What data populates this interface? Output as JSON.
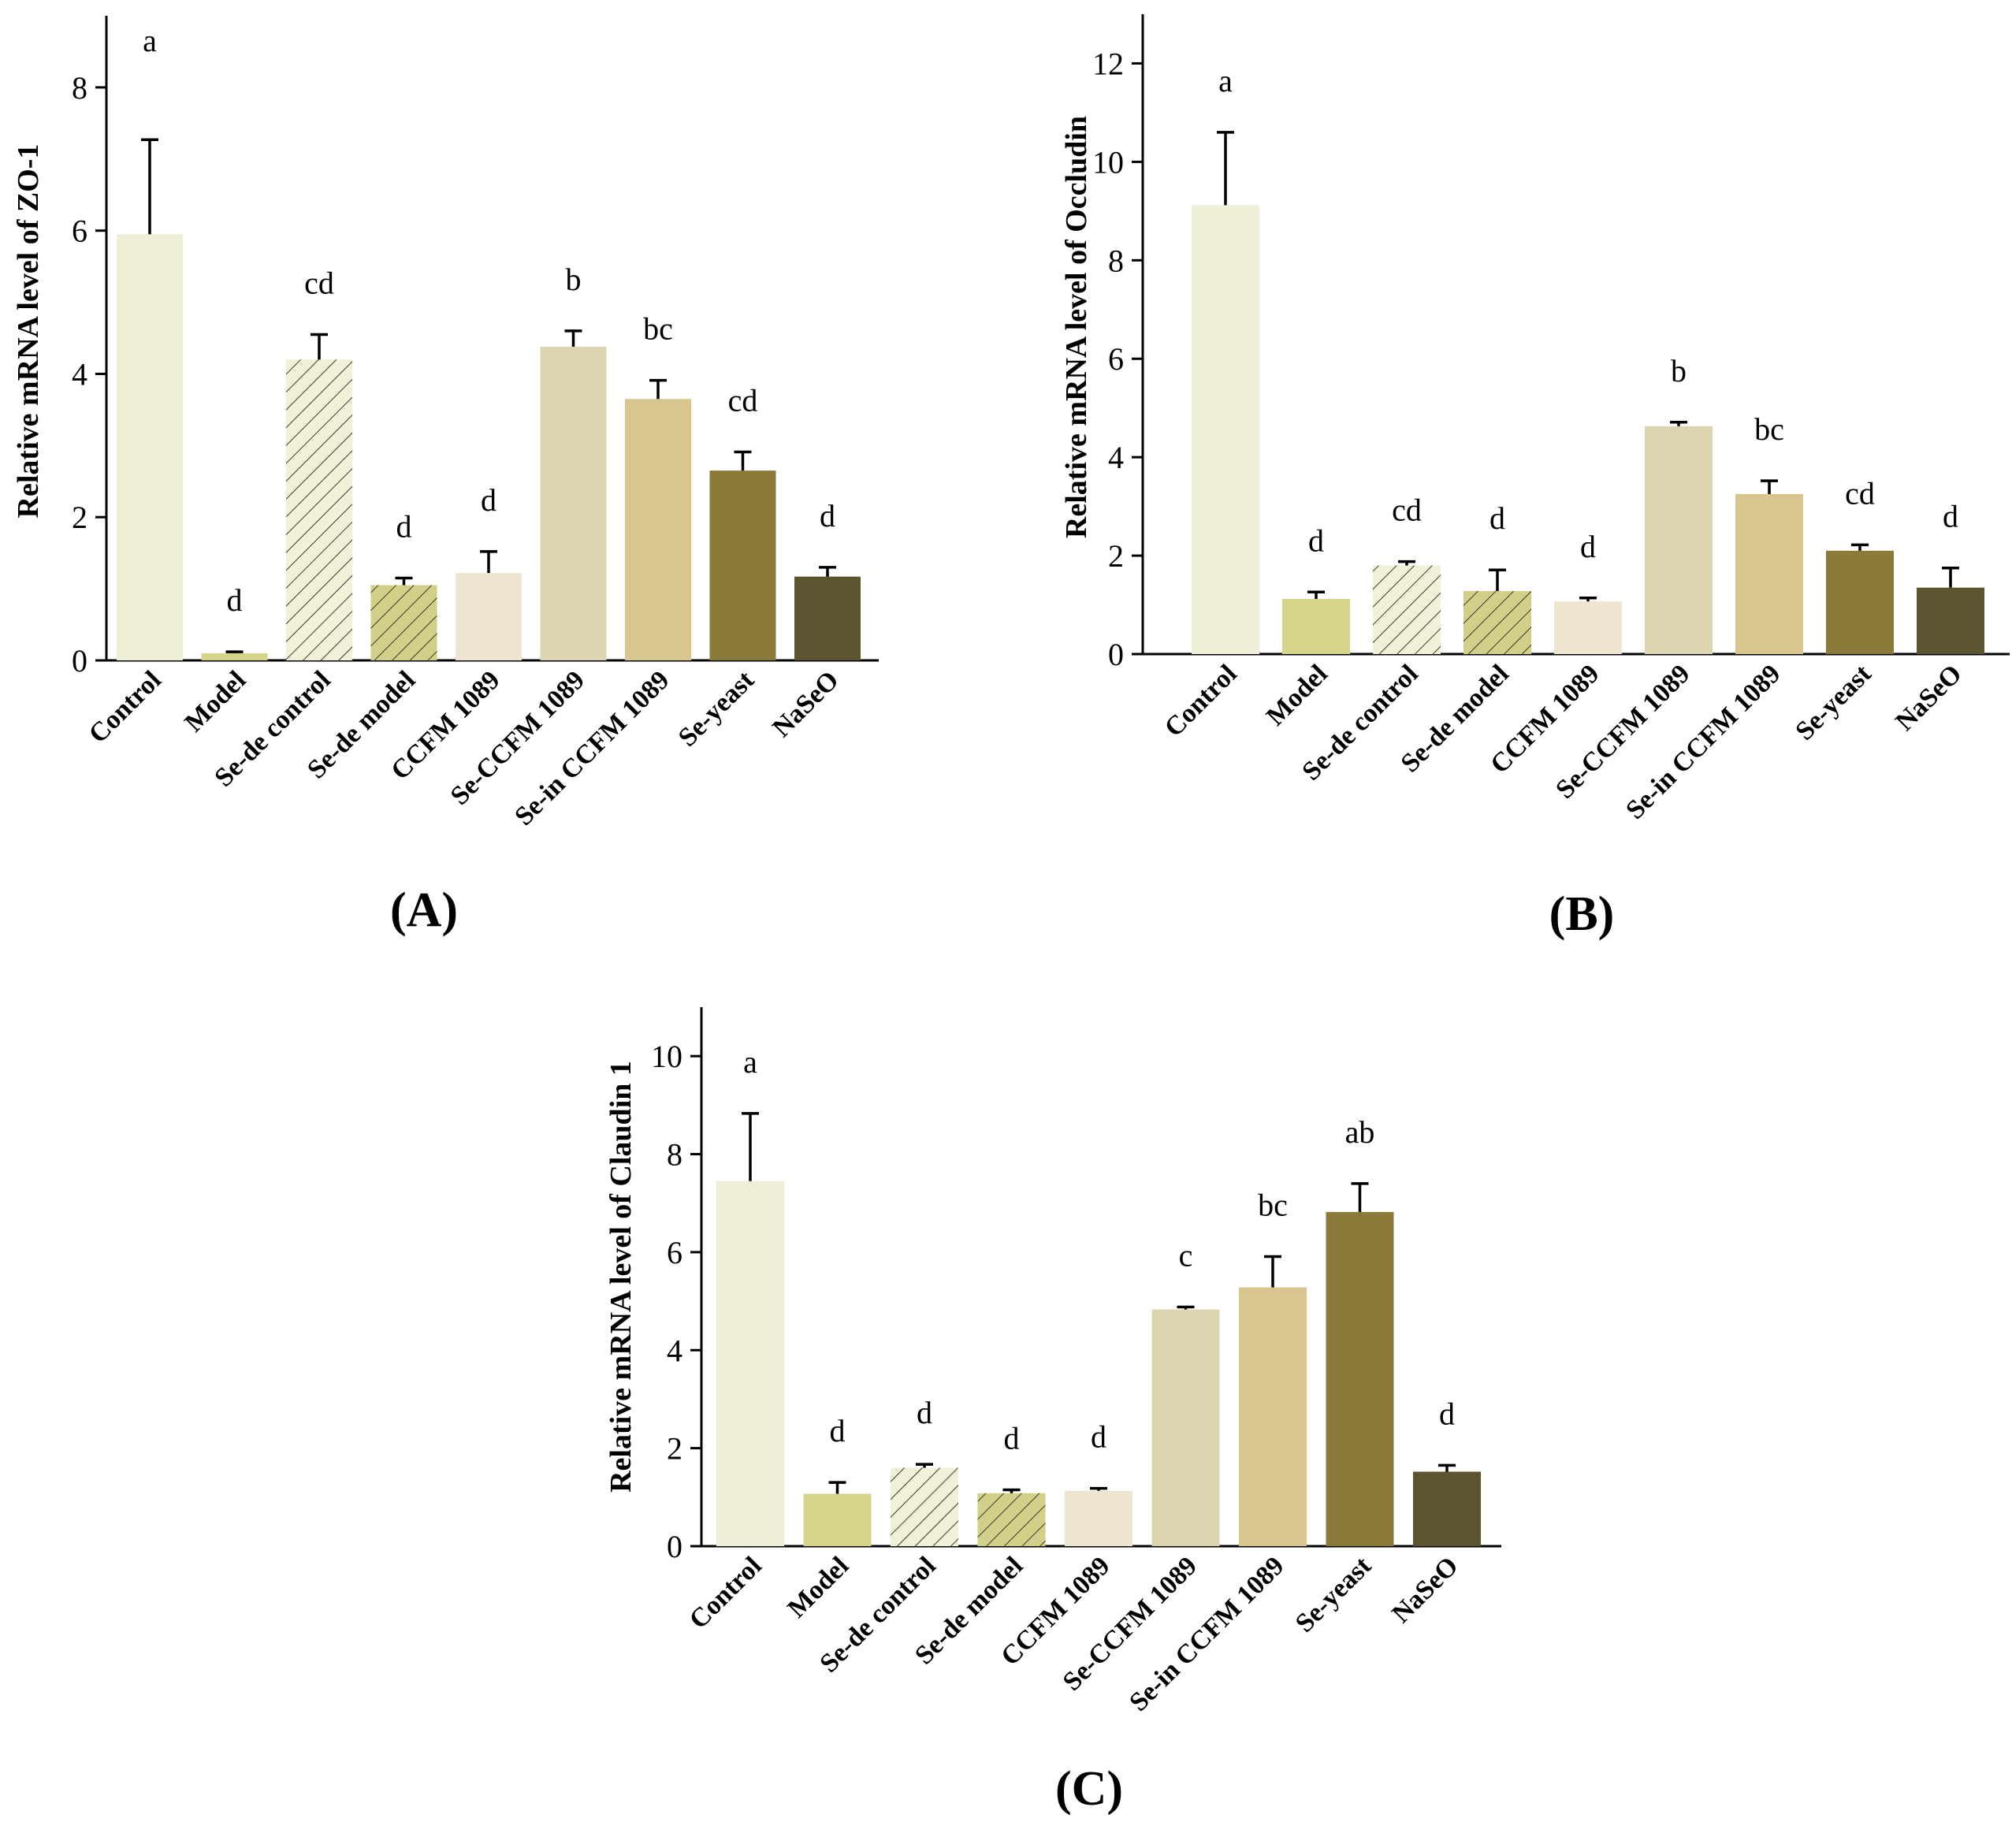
{
  "chart_data": [
    {
      "type": "bar",
      "panel_label": "(A)",
      "ylabel": "Relative mRNA level of ZO-1",
      "ylim": [
        0,
        9
      ],
      "yticks": [
        0,
        2,
        4,
        6,
        8
      ],
      "categories": [
        "Control",
        "Model",
        "Se-de control",
        "Se-de model",
        "CCFM 1089",
        "Se-CCFM 1089",
        "Se-in CCFM 1089",
        "Se-yeast",
        "NaSeO"
      ],
      "values": [
        5.95,
        0.1,
        4.2,
        1.05,
        1.22,
        4.38,
        3.65,
        2.65,
        1.17
      ],
      "errors": [
        1.32,
        0.02,
        0.35,
        0.1,
        0.3,
        0.22,
        0.26,
        0.26,
        0.13
      ],
      "significance": [
        "a",
        "d",
        "cd",
        "d",
        "d",
        "b",
        "bc",
        "cd",
        "d"
      ]
    },
    {
      "type": "bar",
      "panel_label": "(B)",
      "ylabel": "Relative mRNA level of Occludin",
      "ylim": [
        0,
        13
      ],
      "yticks": [
        0,
        2,
        4,
        6,
        8,
        10,
        12
      ],
      "categories": [
        "Control",
        "Model",
        "Se-de control",
        "Se-de model",
        "CCFM 1089",
        "Se-CCFM 1089",
        "Se-in CCFM 1089",
        "Se-yeast",
        "NaSeO"
      ],
      "values": [
        9.12,
        1.12,
        1.8,
        1.28,
        1.07,
        4.63,
        3.25,
        2.1,
        1.35
      ],
      "errors": [
        1.48,
        0.14,
        0.08,
        0.43,
        0.07,
        0.08,
        0.27,
        0.12,
        0.4
      ],
      "significance": [
        "a",
        "d",
        "cd",
        "d",
        "d",
        "b",
        "bc",
        "cd",
        "d"
      ]
    },
    {
      "type": "bar",
      "panel_label": "(C)",
      "ylabel": "Relative mRNA level of Claudin 1",
      "ylim": [
        0,
        11
      ],
      "yticks": [
        0,
        2,
        4,
        6,
        8,
        10
      ],
      "categories": [
        "Control",
        "Model",
        "Se-de control",
        "Se-de model",
        "CCFM 1089",
        "Se-CCFM 1089",
        "Se-in CCFM 1089",
        "Se-yeast",
        "NaSeO"
      ],
      "values": [
        7.45,
        1.07,
        1.6,
        1.08,
        1.13,
        4.83,
        5.28,
        6.82,
        1.52
      ],
      "errors": [
        1.38,
        0.23,
        0.07,
        0.07,
        0.05,
        0.05,
        0.63,
        0.58,
        0.13
      ],
      "significance": [
        "a",
        "d",
        "d",
        "d",
        "d",
        "c",
        "bc",
        "ab",
        "d"
      ]
    }
  ],
  "colors": {
    "bars": [
      "#efeed6",
      "#d6d38a",
      "#f1f0d8",
      "#d2cf88",
      "#ede5d0",
      "#ddd4b0",
      "#d8c68e",
      "#8b7a3a",
      "#5c542f"
    ],
    "hatched_bars": [
      2,
      3
    ],
    "hatch_stroke": "#3a3a2a"
  }
}
